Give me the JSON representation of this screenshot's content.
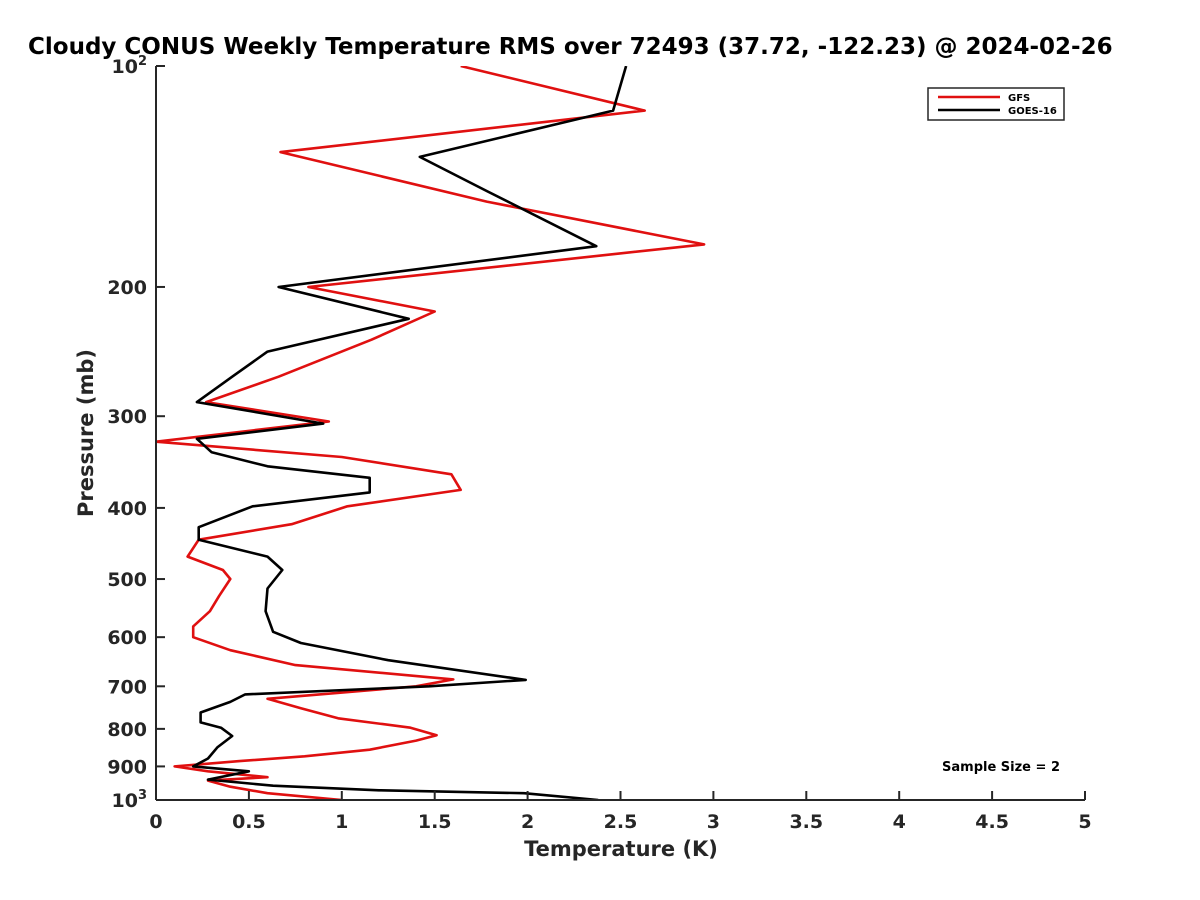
{
  "chart_data": {
    "type": "line",
    "title": "Cloudy CONUS Weekly Temperature RMS over 72493 (37.72, -122.23) @ 2024-02-26",
    "xlabel": "Temperature (K)",
    "ylabel": "Pressure (mb)",
    "xlim": [
      0,
      5
    ],
    "ylim": [
      1000,
      100
    ],
    "yscale": "log",
    "y_reversed": true,
    "xticks": [
      "0",
      "0.5",
      "1",
      "1.5",
      "2",
      "2.5",
      "3",
      "3.5",
      "4",
      "4.5",
      "5"
    ],
    "yticks": [
      {
        "value": 100,
        "base": "10",
        "exp": "2"
      },
      {
        "value": 200,
        "label": "200"
      },
      {
        "value": 300,
        "label": "300"
      },
      {
        "value": 400,
        "label": "400"
      },
      {
        "value": 500,
        "label": "500"
      },
      {
        "value": 600,
        "label": "600"
      },
      {
        "value": 700,
        "label": "700"
      },
      {
        "value": 800,
        "label": "800"
      },
      {
        "value": 900,
        "label": "900"
      },
      {
        "value": 1000,
        "base": "10",
        "exp": "3"
      }
    ],
    "grid": false,
    "legend_position": "top-right",
    "annotation": "Sample Size = 2",
    "series": [
      {
        "name": "GFS",
        "color": "#e01010",
        "points": [
          [
            1.64,
            100
          ],
          [
            2.63,
            115
          ],
          [
            0.67,
            131
          ],
          [
            1.78,
            153
          ],
          [
            2.95,
            175
          ],
          [
            0.82,
            200
          ],
          [
            1.5,
            216
          ],
          [
            1.16,
            236
          ],
          [
            0.66,
            265
          ],
          [
            0.27,
            287
          ],
          [
            0.93,
            305
          ],
          [
            0.0,
            325
          ],
          [
            1.0,
            341
          ],
          [
            1.59,
            360
          ],
          [
            1.64,
            378
          ],
          [
            1.03,
            398
          ],
          [
            0.73,
            421
          ],
          [
            0.23,
            442
          ],
          [
            0.17,
            466
          ],
          [
            0.36,
            486
          ],
          [
            0.4,
            500
          ],
          [
            0.34,
            527
          ],
          [
            0.29,
            553
          ],
          [
            0.2,
            580
          ],
          [
            0.2,
            600
          ],
          [
            0.4,
            625
          ],
          [
            0.75,
            655
          ],
          [
            1.6,
            685
          ],
          [
            1.4,
            700
          ],
          [
            0.6,
            728
          ],
          [
            0.78,
            750
          ],
          [
            0.98,
            774
          ],
          [
            1.37,
            797
          ],
          [
            1.51,
            816
          ],
          [
            1.4,
            830
          ],
          [
            1.15,
            854
          ],
          [
            0.8,
            872
          ],
          [
            0.45,
            885
          ],
          [
            0.1,
            900
          ],
          [
            0.28,
            914
          ],
          [
            0.6,
            931
          ],
          [
            0.28,
            941
          ],
          [
            0.4,
            959
          ],
          [
            0.6,
            979
          ],
          [
            1.0,
            1000
          ]
        ]
      },
      {
        "name": "GOES-16",
        "color": "#000000",
        "points": [
          [
            2.53,
            100
          ],
          [
            2.46,
            115
          ],
          [
            1.42,
            133
          ],
          [
            1.78,
            148
          ],
          [
            2.37,
            176
          ],
          [
            0.66,
            200
          ],
          [
            1.36,
            221
          ],
          [
            0.6,
            245
          ],
          [
            0.41,
            265
          ],
          [
            0.22,
            287
          ],
          [
            0.9,
            307
          ],
          [
            0.22,
            322
          ],
          [
            0.3,
            336
          ],
          [
            0.6,
            351
          ],
          [
            1.15,
            364
          ],
          [
            1.15,
            381
          ],
          [
            0.52,
            398
          ],
          [
            0.23,
            425
          ],
          [
            0.23,
            442
          ],
          [
            0.6,
            466
          ],
          [
            0.68,
            486
          ],
          [
            0.6,
            515
          ],
          [
            0.59,
            553
          ],
          [
            0.63,
            590
          ],
          [
            0.78,
            611
          ],
          [
            1.25,
            645
          ],
          [
            1.99,
            686
          ],
          [
            1.47,
            700
          ],
          [
            0.48,
            718
          ],
          [
            0.4,
            735
          ],
          [
            0.24,
            760
          ],
          [
            0.24,
            784
          ],
          [
            0.35,
            797
          ],
          [
            0.41,
            818
          ],
          [
            0.33,
            848
          ],
          [
            0.28,
            878
          ],
          [
            0.2,
            900
          ],
          [
            0.5,
            914
          ],
          [
            0.28,
            938
          ],
          [
            0.63,
            956
          ],
          [
            1.2,
            970
          ],
          [
            1.98,
            979
          ],
          [
            2.38,
            1000
          ]
        ]
      }
    ]
  }
}
